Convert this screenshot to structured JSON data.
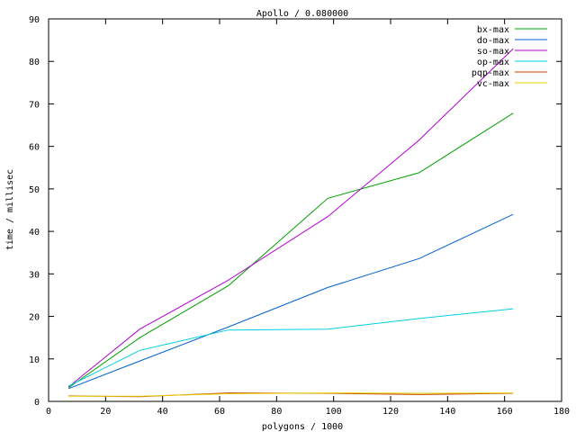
{
  "chart_data": {
    "type": "line",
    "title": "Apollo / 0.080000",
    "xlabel": "polygons / 1000",
    "ylabel": "time / millisec",
    "xlim": [
      0,
      180
    ],
    "ylim": [
      0,
      90
    ],
    "x_ticks": [
      0,
      20,
      40,
      60,
      80,
      100,
      120,
      140,
      160,
      180
    ],
    "y_ticks": [
      0,
      10,
      20,
      30,
      40,
      50,
      60,
      70,
      80,
      90
    ],
    "legend_position": "top-right",
    "grid": false,
    "series": [
      {
        "name": "bx-max",
        "color": "#00a000",
        "points": [
          [
            7,
            3.2
          ],
          [
            32,
            15.0
          ],
          [
            63,
            27.2
          ],
          [
            98,
            47.8
          ],
          [
            130,
            53.8
          ],
          [
            163,
            67.8
          ]
        ]
      },
      {
        "name": "do-max",
        "color": "#0060d0",
        "points": [
          [
            7,
            3.0
          ],
          [
            32,
            9.5
          ],
          [
            63,
            17.5
          ],
          [
            98,
            26.8
          ],
          [
            130,
            33.6
          ],
          [
            163,
            44.0
          ]
        ]
      },
      {
        "name": "so-max",
        "color": "#b000d0",
        "points": [
          [
            7,
            3.4
          ],
          [
            32,
            17.0
          ],
          [
            63,
            28.5
          ],
          [
            98,
            43.5
          ],
          [
            130,
            61.5
          ],
          [
            163,
            83.0
          ]
        ]
      },
      {
        "name": "op-max",
        "color": "#00d0e0",
        "points": [
          [
            7,
            3.6
          ],
          [
            32,
            12.0
          ],
          [
            63,
            16.8
          ],
          [
            98,
            17.0
          ],
          [
            130,
            19.5
          ],
          [
            163,
            21.8
          ]
        ]
      },
      {
        "name": "pqp-max",
        "color": "#c04000",
        "points": [
          [
            7,
            1.3
          ],
          [
            32,
            1.1
          ],
          [
            63,
            2.0
          ],
          [
            98,
            1.9
          ],
          [
            130,
            1.6
          ],
          [
            163,
            1.9
          ]
        ]
      },
      {
        "name": "vc-max",
        "color": "#e8d000",
        "points": [
          [
            7,
            1.2
          ],
          [
            32,
            1.2
          ],
          [
            63,
            1.8
          ],
          [
            98,
            2.0
          ],
          [
            130,
            1.9
          ],
          [
            163,
            2.0
          ]
        ]
      }
    ]
  }
}
